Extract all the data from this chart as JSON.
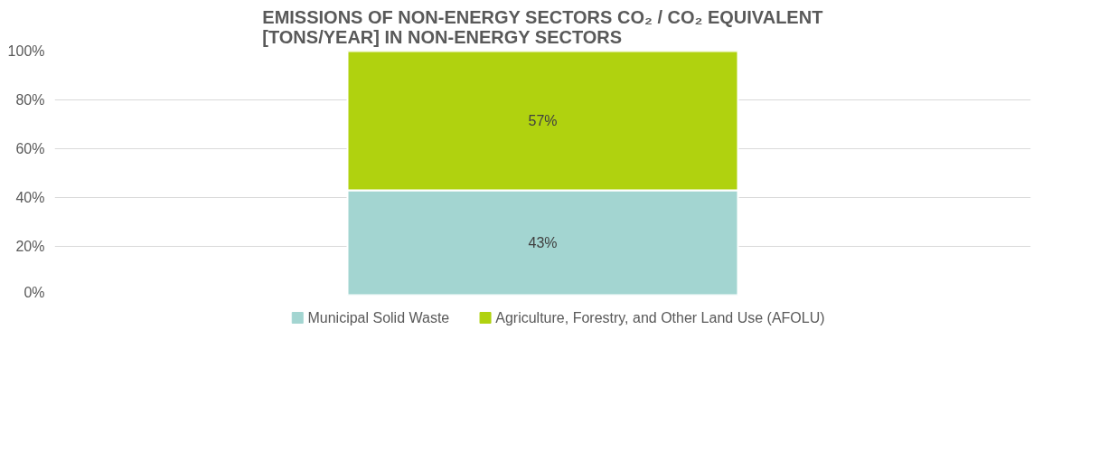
{
  "chart_data": {
    "type": "bar",
    "stacked": true,
    "title": "EMISSIONS OF NON-ENERGY SECTORS CO₂ / CO₂ EQUIVALENT\n[TONS/YEAR] IN NON-ENERGY SECTORS",
    "categories": [
      null
    ],
    "series": [
      {
        "name": "Municipal Solid Waste",
        "color": "#a3d5d1",
        "values": [
          43
        ],
        "value_labels": [
          "43%"
        ]
      },
      {
        "name": "Agriculture, Forestry, and Other Land Use (AFOLU)",
        "color": "#b0d20f",
        "values": [
          57
        ],
        "value_labels": [
          "57%"
        ]
      }
    ],
    "ylim": [
      0,
      100
    ],
    "yticks": [
      {
        "value": 0,
        "label": "0%"
      },
      {
        "value": 20,
        "label": "20%"
      },
      {
        "value": 40,
        "label": "40%"
      },
      {
        "value": 60,
        "label": "60%"
      },
      {
        "value": 80,
        "label": "80%"
      },
      {
        "value": 100,
        "label": "100%"
      }
    ],
    "grid": "y",
    "legend": "bottom"
  }
}
